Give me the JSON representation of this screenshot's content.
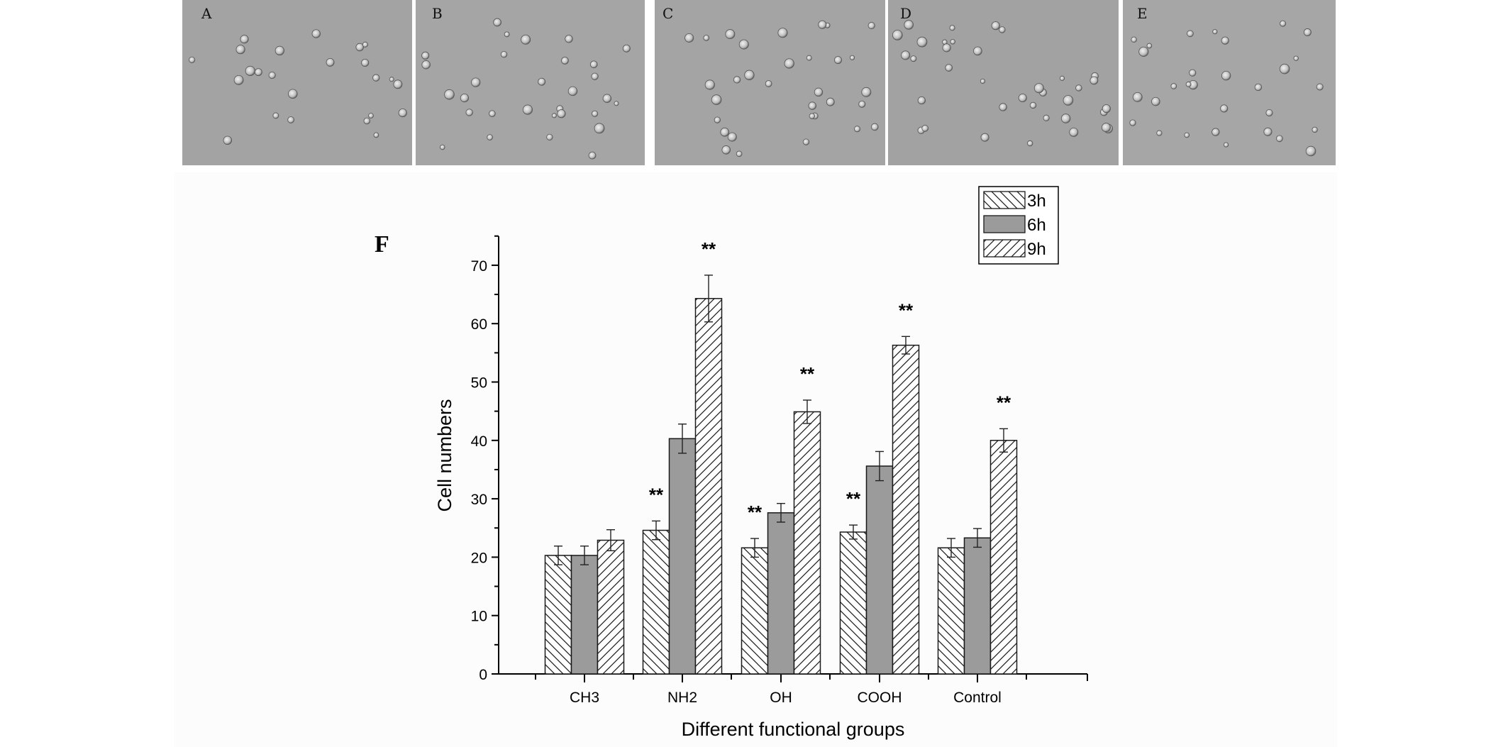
{
  "panels": [
    {
      "label": "A"
    },
    {
      "label": "B"
    },
    {
      "label": "C"
    },
    {
      "label": "D"
    },
    {
      "label": "E"
    }
  ],
  "panel_f_label": "F",
  "chart_data": {
    "type": "bar",
    "categories": [
      "CH3",
      "NH2",
      "OH",
      "COOH",
      "Control"
    ],
    "series": [
      {
        "name": "3h",
        "values": [
          20.3,
          24.6,
          21.6,
          24.3,
          21.6
        ],
        "errors": [
          1.6,
          1.6,
          1.6,
          1.2,
          1.6
        ]
      },
      {
        "name": "6h",
        "values": [
          20.3,
          40.3,
          27.6,
          35.6,
          23.3
        ],
        "errors": [
          1.6,
          2.5,
          1.6,
          2.5,
          1.6
        ]
      },
      {
        "name": "9h",
        "values": [
          22.9,
          64.3,
          44.9,
          56.3,
          40.0
        ],
        "errors": [
          1.8,
          4.0,
          2.0,
          1.5,
          2.0
        ]
      }
    ],
    "significance": [
      {
        "category": "NH2",
        "series": "3h",
        "text": "**"
      },
      {
        "category": "NH2",
        "series": "9h",
        "text": "**"
      },
      {
        "category": "OH",
        "series": "3h",
        "text": "**"
      },
      {
        "category": "OH",
        "series": "9h",
        "text": "**"
      },
      {
        "category": "COOH",
        "series": "3h",
        "text": "**"
      },
      {
        "category": "COOH",
        "series": "9h",
        "text": "**"
      },
      {
        "category": "Control",
        "series": "9h",
        "text": "**"
      }
    ],
    "xlabel": "Different functional groups",
    "ylabel": "Cell numbers",
    "ylim": [
      0,
      75
    ],
    "yticks": [
      0,
      10,
      20,
      30,
      40,
      50,
      60,
      70
    ],
    "legend_position": "top-right",
    "colors": {
      "bar_outline": "#1a1a1a",
      "solid_fill": "#9b9b9b",
      "hatch_bg": "#ffffff"
    }
  }
}
